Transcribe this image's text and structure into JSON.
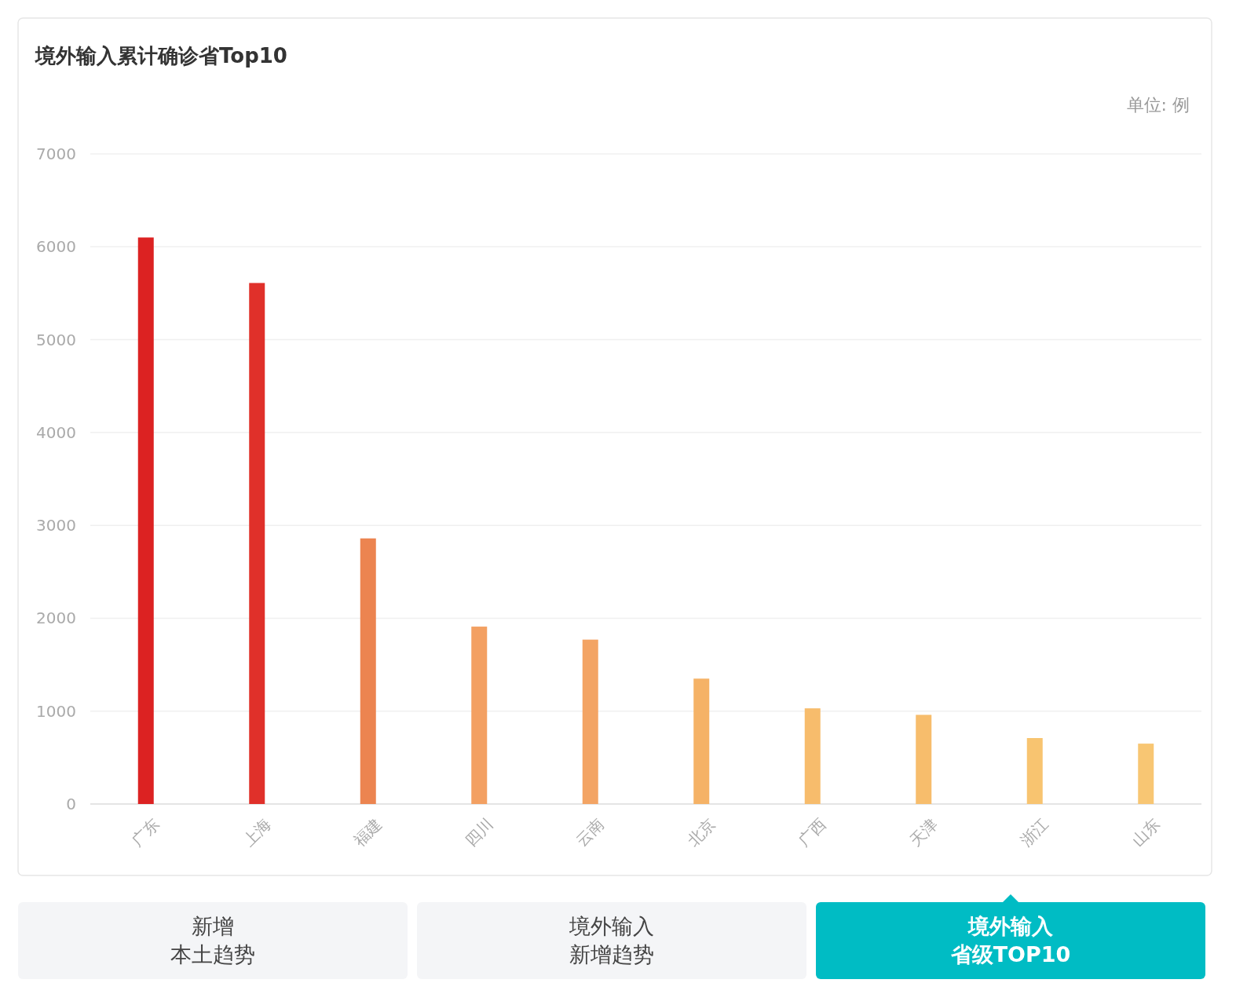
{
  "chart_data": {
    "type": "bar",
    "title": "境外输入累计确诊省Top10",
    "categories": [
      "广东",
      "上海",
      "福建",
      "四川",
      "云南",
      "北京",
      "广西",
      "天津",
      "浙江",
      "山东"
    ],
    "values": [
      6100,
      5610,
      2860,
      1910,
      1770,
      1350,
      1030,
      960,
      710,
      650
    ],
    "colors": [
      "#dc2222",
      "#e0302a",
      "#ec8450",
      "#f3a062",
      "#f3a464",
      "#f5b266",
      "#f7bc6c",
      "#f7bd6c",
      "#f8c470",
      "#f8c673"
    ],
    "ylim": [
      0,
      7000
    ],
    "yticks": [
      0,
      1000,
      2000,
      3000,
      4000,
      5000,
      6000,
      7000
    ],
    "grid": "y",
    "annotations": [
      "单位: 例",
      "新增",
      "本土趋势",
      "境外输入",
      "新增趋势",
      "境外输入",
      "省级TOP10"
    ]
  }
}
